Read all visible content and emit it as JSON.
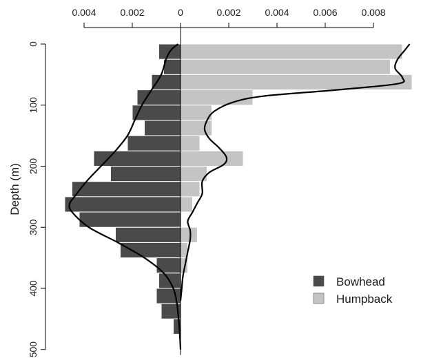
{
  "chart_data": {
    "type": "bar",
    "orientation": "horizontal-back-to-back",
    "xlabel": "",
    "ylabel": "Depth (m)",
    "x_ticks": [
      {
        "value": -0.004,
        "label": "0.004"
      },
      {
        "value": -0.002,
        "label": "0.002"
      },
      {
        "value": 0,
        "label": "0"
      },
      {
        "value": 0.002,
        "label": "0.002"
      },
      {
        "value": 0.004,
        "label": "0.004"
      },
      {
        "value": 0.006,
        "label": "0.006"
      },
      {
        "value": 0.008,
        "label": "0.008"
      }
    ],
    "y_ticks": [
      0,
      100,
      200,
      300,
      400,
      500
    ],
    "xlim": [
      -0.0045,
      0.0095
    ],
    "ylim": [
      0,
      500
    ],
    "depth_bins": [
      [
        0,
        25
      ],
      [
        25,
        50
      ],
      [
        50,
        75
      ],
      [
        75,
        100
      ],
      [
        100,
        125
      ],
      [
        125,
        150
      ],
      [
        150,
        175
      ],
      [
        175,
        200
      ],
      [
        200,
        225
      ],
      [
        225,
        250
      ],
      [
        250,
        275
      ],
      [
        275,
        300
      ],
      [
        300,
        325
      ],
      [
        325,
        350
      ],
      [
        350,
        375
      ],
      [
        375,
        400
      ],
      [
        400,
        425
      ],
      [
        425,
        450
      ],
      [
        450,
        475
      ],
      [
        475,
        500
      ]
    ],
    "series": [
      {
        "name": "Bowhead",
        "side": "left",
        "color": "#4a4a4a",
        "values": [
          0.0009,
          0.0007,
          0.0012,
          0.0018,
          0.002,
          0.0015,
          0.0022,
          0.0036,
          0.0029,
          0.0045,
          0.0048,
          0.0042,
          0.0027,
          0.0025,
          0.001,
          0.0009,
          0.001,
          0.0008,
          0.0003,
          0.0
        ],
        "density_curve": [
          [
            0,
            0.0001
          ],
          [
            10,
            0.0004
          ],
          [
            25,
            0.0006
          ],
          [
            50,
            0.0008
          ],
          [
            75,
            0.0012
          ],
          [
            100,
            0.0016
          ],
          [
            125,
            0.0019
          ],
          [
            150,
            0.0022
          ],
          [
            175,
            0.0027
          ],
          [
            200,
            0.0033
          ],
          [
            225,
            0.0039
          ],
          [
            250,
            0.0044
          ],
          [
            262,
            0.0046
          ],
          [
            275,
            0.0045
          ],
          [
            300,
            0.0038
          ],
          [
            325,
            0.0026
          ],
          [
            350,
            0.0015
          ],
          [
            375,
            0.0007
          ],
          [
            400,
            0.0003
          ],
          [
            425,
            0.00015
          ],
          [
            450,
            8e-05
          ],
          [
            475,
            3e-05
          ],
          [
            500,
            0.0
          ]
        ]
      },
      {
        "name": "Humpback",
        "side": "right",
        "color": "#c4c4c4",
        "values": [
          0.0092,
          0.0087,
          0.0096,
          0.003,
          0.0013,
          0.0013,
          0.0008,
          0.0026,
          0.0011,
          0.0008,
          0.0005,
          0.0,
          0.0007,
          0.0003,
          0.0003,
          0.0,
          0.0,
          0.0,
          0.0,
          0.0
        ],
        "density_curve": [
          [
            0,
            0.0095
          ],
          [
            10,
            0.0093
          ],
          [
            25,
            0.009
          ],
          [
            40,
            0.0089
          ],
          [
            55,
            0.0092
          ],
          [
            65,
            0.009
          ],
          [
            75,
            0.0065
          ],
          [
            85,
            0.0035
          ],
          [
            95,
            0.0022
          ],
          [
            110,
            0.0014
          ],
          [
            125,
            0.0011
          ],
          [
            140,
            0.001
          ],
          [
            155,
            0.0012
          ],
          [
            170,
            0.0016
          ],
          [
            185,
            0.0019
          ],
          [
            197,
            0.0018
          ],
          [
            210,
            0.0012
          ],
          [
            225,
            0.0009
          ],
          [
            245,
            0.0009
          ],
          [
            260,
            0.0007
          ],
          [
            275,
            0.0005
          ],
          [
            290,
            0.0003
          ],
          [
            305,
            0.0004
          ],
          [
            320,
            0.0004
          ],
          [
            340,
            0.0003
          ],
          [
            360,
            0.0002
          ],
          [
            380,
            0.0001
          ],
          [
            400,
            5e-05
          ],
          [
            420,
            0.0
          ]
        ]
      }
    ],
    "legend": {
      "placement": "bottom-right",
      "entries": [
        {
          "label": "Bowhead",
          "color": "#4a4a4a"
        },
        {
          "label": "Humpback",
          "color": "#c4c4c4"
        }
      ]
    }
  }
}
